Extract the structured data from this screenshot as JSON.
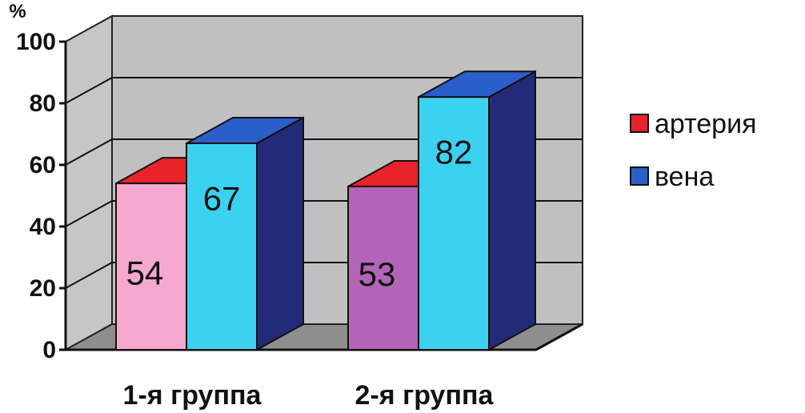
{
  "chart_data": {
    "type": "bar",
    "categories": [
      "1-я группа",
      "2-я группа"
    ],
    "series": [
      {
        "name": "артерия",
        "values": [
          54,
          53
        ],
        "color": "#e8242a"
      },
      {
        "name": "вена",
        "values": [
          67,
          82
        ],
        "color": "#2a5ecb"
      }
    ],
    "ylabel": "%",
    "ylim": [
      0,
      100
    ],
    "yticks": [
      0,
      20,
      40,
      60,
      80,
      100
    ],
    "grid": true,
    "legend": "right",
    "front_colors": {
      "series0": [
        "#f7a8cf",
        "#b364b8"
      ],
      "series1": [
        "#3bd2f2",
        "#3bd2f2"
      ]
    },
    "label_colors": [
      "#111111",
      "#3d1d5e"
    ]
  }
}
